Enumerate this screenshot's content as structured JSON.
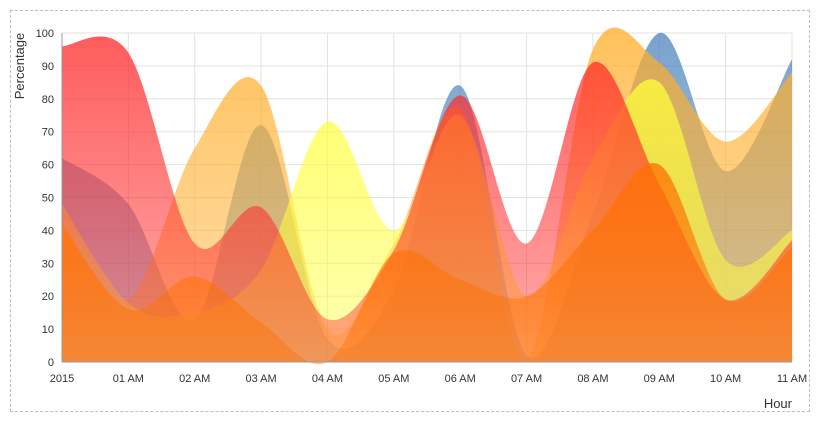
{
  "chart_data": {
    "type": "area",
    "title": "",
    "xlabel": "Hour",
    "ylabel": "Percentage",
    "ylim": [
      0,
      100
    ],
    "yticks": [
      0,
      10,
      20,
      30,
      40,
      50,
      60,
      70,
      80,
      90,
      100
    ],
    "categories": [
      "2015",
      "01 AM",
      "02 AM",
      "03 AM",
      "04 AM",
      "05 AM",
      "06 AM",
      "07 AM",
      "08 AM",
      "09 AM",
      "10 AM",
      "11 AM"
    ],
    "grid": true,
    "legend": "none",
    "series": [
      {
        "color": "#4f86be",
        "values": [
          62,
          48,
          13,
          72,
          7,
          22,
          84,
          2,
          45,
          100,
          58,
          92
        ]
      },
      {
        "color": "#ffae2a",
        "values": [
          42,
          19,
          65,
          84,
          10,
          36,
          77,
          1,
          95,
          91,
          67,
          88
        ]
      },
      {
        "color": "#ffff3a",
        "values": [
          48,
          18,
          15,
          28,
          73,
          40,
          75,
          20,
          62,
          85,
          31,
          40
        ]
      },
      {
        "color": "#ff2a2a",
        "values": [
          96,
          94,
          36,
          47,
          13,
          34,
          81,
          36,
          91,
          54,
          19,
          37
        ]
      },
      {
        "color": "#ff7000",
        "values": [
          42,
          16,
          26,
          12,
          0,
          33,
          25,
          20,
          40,
          60,
          19,
          35
        ]
      }
    ]
  }
}
